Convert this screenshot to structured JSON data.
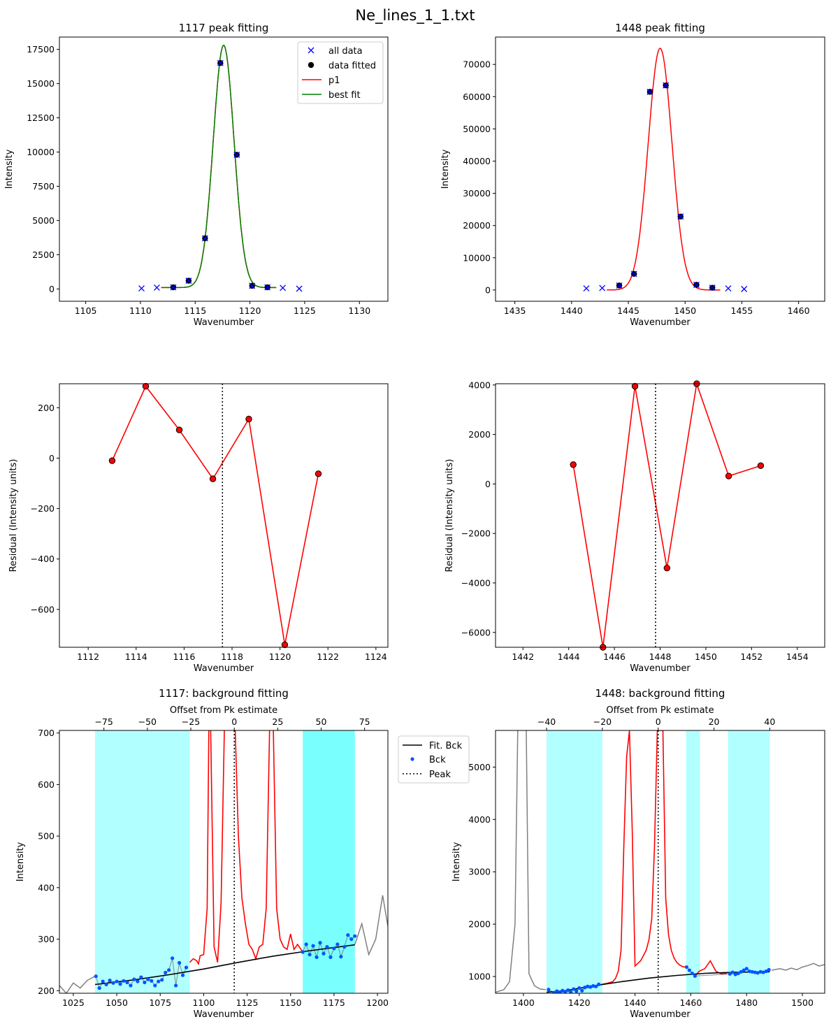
{
  "figure": {
    "suptitle": "Ne_lines_1_1.txt",
    "colors": {
      "all_data": "#0000ff",
      "fitted": "#000000",
      "p1": "#ff0000",
      "best_fit": "#008000",
      "residual": "#ff0000",
      "bck_region": "#00ffff",
      "bck_points": "#0055ff",
      "raw": "#808080"
    }
  },
  "chart_data": [
    {
      "id": "p1117_fit",
      "type": "scatter",
      "title": "1117 peak fitting",
      "xlabel": "Wavenumber",
      "ylabel": "Intensity",
      "xlim": [
        1102.6,
        1132.6
      ],
      "ylim": [
        -900,
        18400
      ],
      "xticks": [
        1105,
        1110,
        1115,
        1120,
        1125,
        1130
      ],
      "yticks": [
        0,
        2500,
        5000,
        7500,
        10000,
        12500,
        15000,
        17500
      ],
      "legend": {
        "position": "top-right",
        "entries": [
          "all data",
          "data fitted",
          "p1",
          "best fit"
        ]
      },
      "all_data": {
        "x": [
          1110.1,
          1111.5,
          1113.0,
          1114.4,
          1115.9,
          1117.3,
          1118.8,
          1120.2,
          1121.6,
          1123.0,
          1124.5
        ],
        "y": [
          40,
          100,
          120,
          600,
          3700,
          16500,
          9800,
          230,
          120,
          80,
          20
        ]
      },
      "data_fitted": {
        "x": [
          1113.0,
          1114.4,
          1115.9,
          1117.3,
          1118.8,
          1120.2,
          1121.6
        ],
        "y": [
          120,
          600,
          3700,
          16500,
          9800,
          230,
          120
        ]
      },
      "fit": {
        "center": 1117.6,
        "amplitude": 17700,
        "sigma": 0.95,
        "baseline": 100,
        "xrange": [
          1111.9,
          1122.4
        ]
      }
    },
    {
      "id": "p1448_fit",
      "type": "scatter",
      "title": "1448 peak fitting",
      "xlabel": "Wavenumber",
      "ylabel": "Intensity",
      "xlim": [
        1433.3,
        1462.3
      ],
      "ylim": [
        -3500,
        78500
      ],
      "xticks": [
        1435,
        1440,
        1445,
        1450,
        1455,
        1460
      ],
      "yticks": [
        0,
        10000,
        20000,
        30000,
        40000,
        50000,
        60000,
        70000
      ],
      "all_data": {
        "x": [
          1441.3,
          1442.7,
          1444.2,
          1445.5,
          1446.9,
          1448.3,
          1449.6,
          1451.0,
          1452.4,
          1453.8,
          1455.2
        ],
        "y": [
          500,
          600,
          1400,
          5000,
          61500,
          63500,
          22800,
          1600,
          700,
          500,
          300
        ]
      },
      "data_fitted": {
        "x": [
          1444.2,
          1445.5,
          1446.9,
          1448.3,
          1449.6,
          1451.0,
          1452.4
        ],
        "y": [
          1400,
          5000,
          61500,
          63500,
          22800,
          1600,
          700
        ]
      },
      "fit": {
        "center": 1447.8,
        "amplitude": 75000,
        "sigma": 1.05,
        "baseline": 0,
        "xrange": [
          1443.1,
          1453.1
        ]
      }
    },
    {
      "id": "p1117_resid",
      "type": "line",
      "xlabel": "Wavenumber",
      "ylabel": "Residual (Intensity units)",
      "xlim": [
        1110.8,
        1124.5
      ],
      "ylim": [
        -750,
        295
      ],
      "xticks": [
        1112,
        1114,
        1116,
        1118,
        1120,
        1122,
        1124
      ],
      "yticks": [
        -600,
        -400,
        -200,
        0,
        200
      ],
      "x": [
        1113.0,
        1114.4,
        1115.8,
        1117.2,
        1118.7,
        1120.2,
        1121.6
      ],
      "y": [
        -10,
        285,
        112,
        -82,
        155,
        -740,
        -62
      ],
      "peak": 1117.6
    },
    {
      "id": "p1448_resid",
      "type": "line",
      "xlabel": "Wavenumber",
      "ylabel": "Residual (Intensity units)",
      "xlim": [
        1440.8,
        1455.2
      ],
      "ylim": [
        -6600,
        4050
      ],
      "xticks": [
        1442,
        1444,
        1446,
        1448,
        1450,
        1452,
        1454
      ],
      "yticks": [
        -6000,
        -4000,
        -2000,
        0,
        2000,
        4000
      ],
      "x": [
        1444.2,
        1445.5,
        1446.9,
        1448.3,
        1449.6,
        1451.0,
        1452.4
      ],
      "y": [
        780,
        -6600,
        3950,
        -3400,
        4050,
        320,
        740
      ],
      "peak": 1447.8
    },
    {
      "id": "p1117_bck",
      "type": "line",
      "title": "1117: background fitting",
      "xlabel": "Wavenumber",
      "ylabel": "Intensity",
      "top_xlabel": "Offset from Pk estimate",
      "xlim": [
        1017,
        1206
      ],
      "ylim": [
        195,
        705
      ],
      "xticks": [
        1025,
        1050,
        1075,
        1100,
        1125,
        1150,
        1175,
        1200
      ],
      "yticks": [
        200,
        300,
        400,
        500,
        600,
        700
      ],
      "top_xticks": [
        -75,
        -50,
        -25,
        0,
        25,
        50,
        75
      ],
      "peak": 1117.6,
      "bck_regions": [
        [
          1037.5,
          1092
        ],
        [
          1157,
          1187
        ]
      ],
      "legend": {
        "position": "outside-right",
        "entries": [
          "Fit. Bck",
          "Bck",
          "Peak"
        ]
      },
      "fit_bck": {
        "x": [
          1037.5,
          1060,
          1080,
          1100,
          1120,
          1140,
          1160,
          1187
        ],
        "y": [
          212,
          221,
          231,
          242,
          255,
          267,
          277,
          289
        ]
      },
      "raw": {
        "x": [
          1017,
          1021,
          1025,
          1029,
          1033,
          1037.5,
          1187,
          1191,
          1195,
          1199,
          1203,
          1206
        ],
        "y": [
          210,
          195,
          215,
          205,
          220,
          228,
          290,
          330,
          270,
          300,
          385,
          325
        ]
      },
      "bck_pts": {
        "x": [
          1038,
          1040,
          1042,
          1044,
          1046,
          1048,
          1050,
          1052,
          1054,
          1056,
          1058,
          1060,
          1062,
          1064,
          1066,
          1068,
          1070,
          1072,
          1074,
          1076,
          1078,
          1080,
          1082,
          1084,
          1086,
          1088,
          1090,
          1157,
          1159,
          1161,
          1163,
          1165,
          1167,
          1169,
          1171,
          1173,
          1175,
          1177,
          1179,
          1181,
          1183,
          1185,
          1187
        ],
        "y": [
          228,
          205,
          218,
          212,
          220,
          215,
          218,
          213,
          219,
          216,
          210,
          222,
          218,
          226,
          216,
          222,
          219,
          210,
          218,
          221,
          235,
          240,
          263,
          210,
          254,
          230,
          245,
          275,
          290,
          270,
          287,
          265,
          293,
          272,
          285,
          265,
          282,
          290,
          266,
          285,
          308,
          300,
          306
        ]
      },
      "peak_curve": {
        "x": [
          1092,
          1094,
          1096,
          1097,
          1098,
          1100,
          1102,
          1103,
          1104,
          1106,
          1107,
          1108,
          1110,
          1112,
          1114,
          1116,
          1118,
          1120,
          1122,
          1124,
          1126,
          1128,
          1130,
          1132,
          1134,
          1136,
          1138,
          1140,
          1142,
          1144,
          1146,
          1148,
          1150,
          1152,
          1154,
          1156,
          1157
        ],
        "y": [
          255,
          262,
          258,
          252,
          268,
          270,
          360,
          720,
          720,
          285,
          270,
          255,
          370,
          720,
          720,
          720,
          720,
          500,
          380,
          330,
          290,
          280,
          262,
          285,
          290,
          360,
          720,
          720,
          360,
          300,
          285,
          280,
          310,
          280,
          290,
          280,
          275
        ]
      }
    },
    {
      "id": "p1448_bck",
      "type": "line",
      "title": "1448: background fitting",
      "xlabel": "Wavenumber",
      "ylabel": "Intensity",
      "top_xlabel": "Offset from Pk estimate",
      "xlim": [
        1390,
        1508
      ],
      "ylim": [
        680,
        5700
      ],
      "xticks": [
        1400,
        1420,
        1440,
        1460,
        1480,
        1500
      ],
      "yticks": [
        1000,
        2000,
        3000,
        4000,
        5000
      ],
      "top_xticks": [
        -40,
        -20,
        0,
        20,
        40
      ],
      "peak": 1448.3,
      "bck_regions": [
        [
          1408.3,
          1428.3
        ],
        [
          1458.3,
          1463.3
        ],
        [
          1473.3,
          1488.3
        ]
      ],
      "fit_bck": {
        "x": [
          1408.3,
          1415,
          1425,
          1435,
          1445,
          1455,
          1465,
          1475,
          1488.3
        ],
        "y": [
          700,
          730,
          820,
          900,
          970,
          1020,
          1060,
          1080,
          1090
        ]
      },
      "raw": {
        "x": [
          1390,
          1393,
          1395,
          1397,
          1398,
          1399,
          1400,
          1401,
          1402,
          1404,
          1406,
          1408,
          1489,
          1492,
          1494,
          1496,
          1498,
          1500,
          1502,
          1504,
          1506,
          1508
        ],
        "y": [
          700,
          750,
          900,
          2000,
          5800,
          5800,
          5800,
          5800,
          1050,
          820,
          760,
          750,
          1120,
          1150,
          1120,
          1160,
          1130,
          1180,
          1210,
          1250,
          1200,
          1230
        ]
      },
      "bck_pts": {
        "x": [
          1409,
          1411,
          1412,
          1413,
          1414,
          1415,
          1416,
          1417,
          1418,
          1419,
          1420,
          1421,
          1422,
          1423,
          1424,
          1425,
          1426,
          1427,
          1458.5,
          1459.5,
          1460.5,
          1461.5,
          1474,
          1475,
          1476,
          1477,
          1478,
          1479,
          1480,
          1481,
          1482,
          1483,
          1484,
          1485,
          1486,
          1487,
          1488
        ],
        "y": [
          750,
          690,
          720,
          700,
          730,
          710,
          740,
          700,
          760,
          720,
          780,
          730,
          790,
          810,
          800,
          820,
          810,
          850,
          1180,
          1120,
          1060,
          1010,
          1050,
          1080,
          1040,
          1060,
          1090,
          1120,
          1150,
          1100,
          1090,
          1080,
          1070,
          1090,
          1080,
          1100,
          1130
        ]
      },
      "peak_curve": {
        "x": [
          1428,
          1430,
          1432,
          1433,
          1434,
          1435,
          1436,
          1437,
          1438,
          1439,
          1440,
          1441,
          1442,
          1443,
          1444,
          1445,
          1446,
          1447,
          1448,
          1449,
          1450,
          1451,
          1452,
          1453,
          1454,
          1455,
          1456,
          1457,
          1458
        ],
        "y": [
          850,
          870,
          900,
          960,
          1100,
          1500,
          3500,
          5200,
          5700,
          3800,
          1200,
          1250,
          1300,
          1400,
          1500,
          1700,
          2100,
          3500,
          5700,
          5700,
          5700,
          2500,
          1800,
          1500,
          1350,
          1270,
          1220,
          1190,
          1180
        ]
      },
      "peak_curve2": {
        "x": [
          1461.5,
          1463,
          1465,
          1467,
          1469,
          1471,
          1473
        ],
        "y": [
          1010,
          1100,
          1150,
          1300,
          1100,
          1050,
          1060
        ]
      }
    }
  ]
}
